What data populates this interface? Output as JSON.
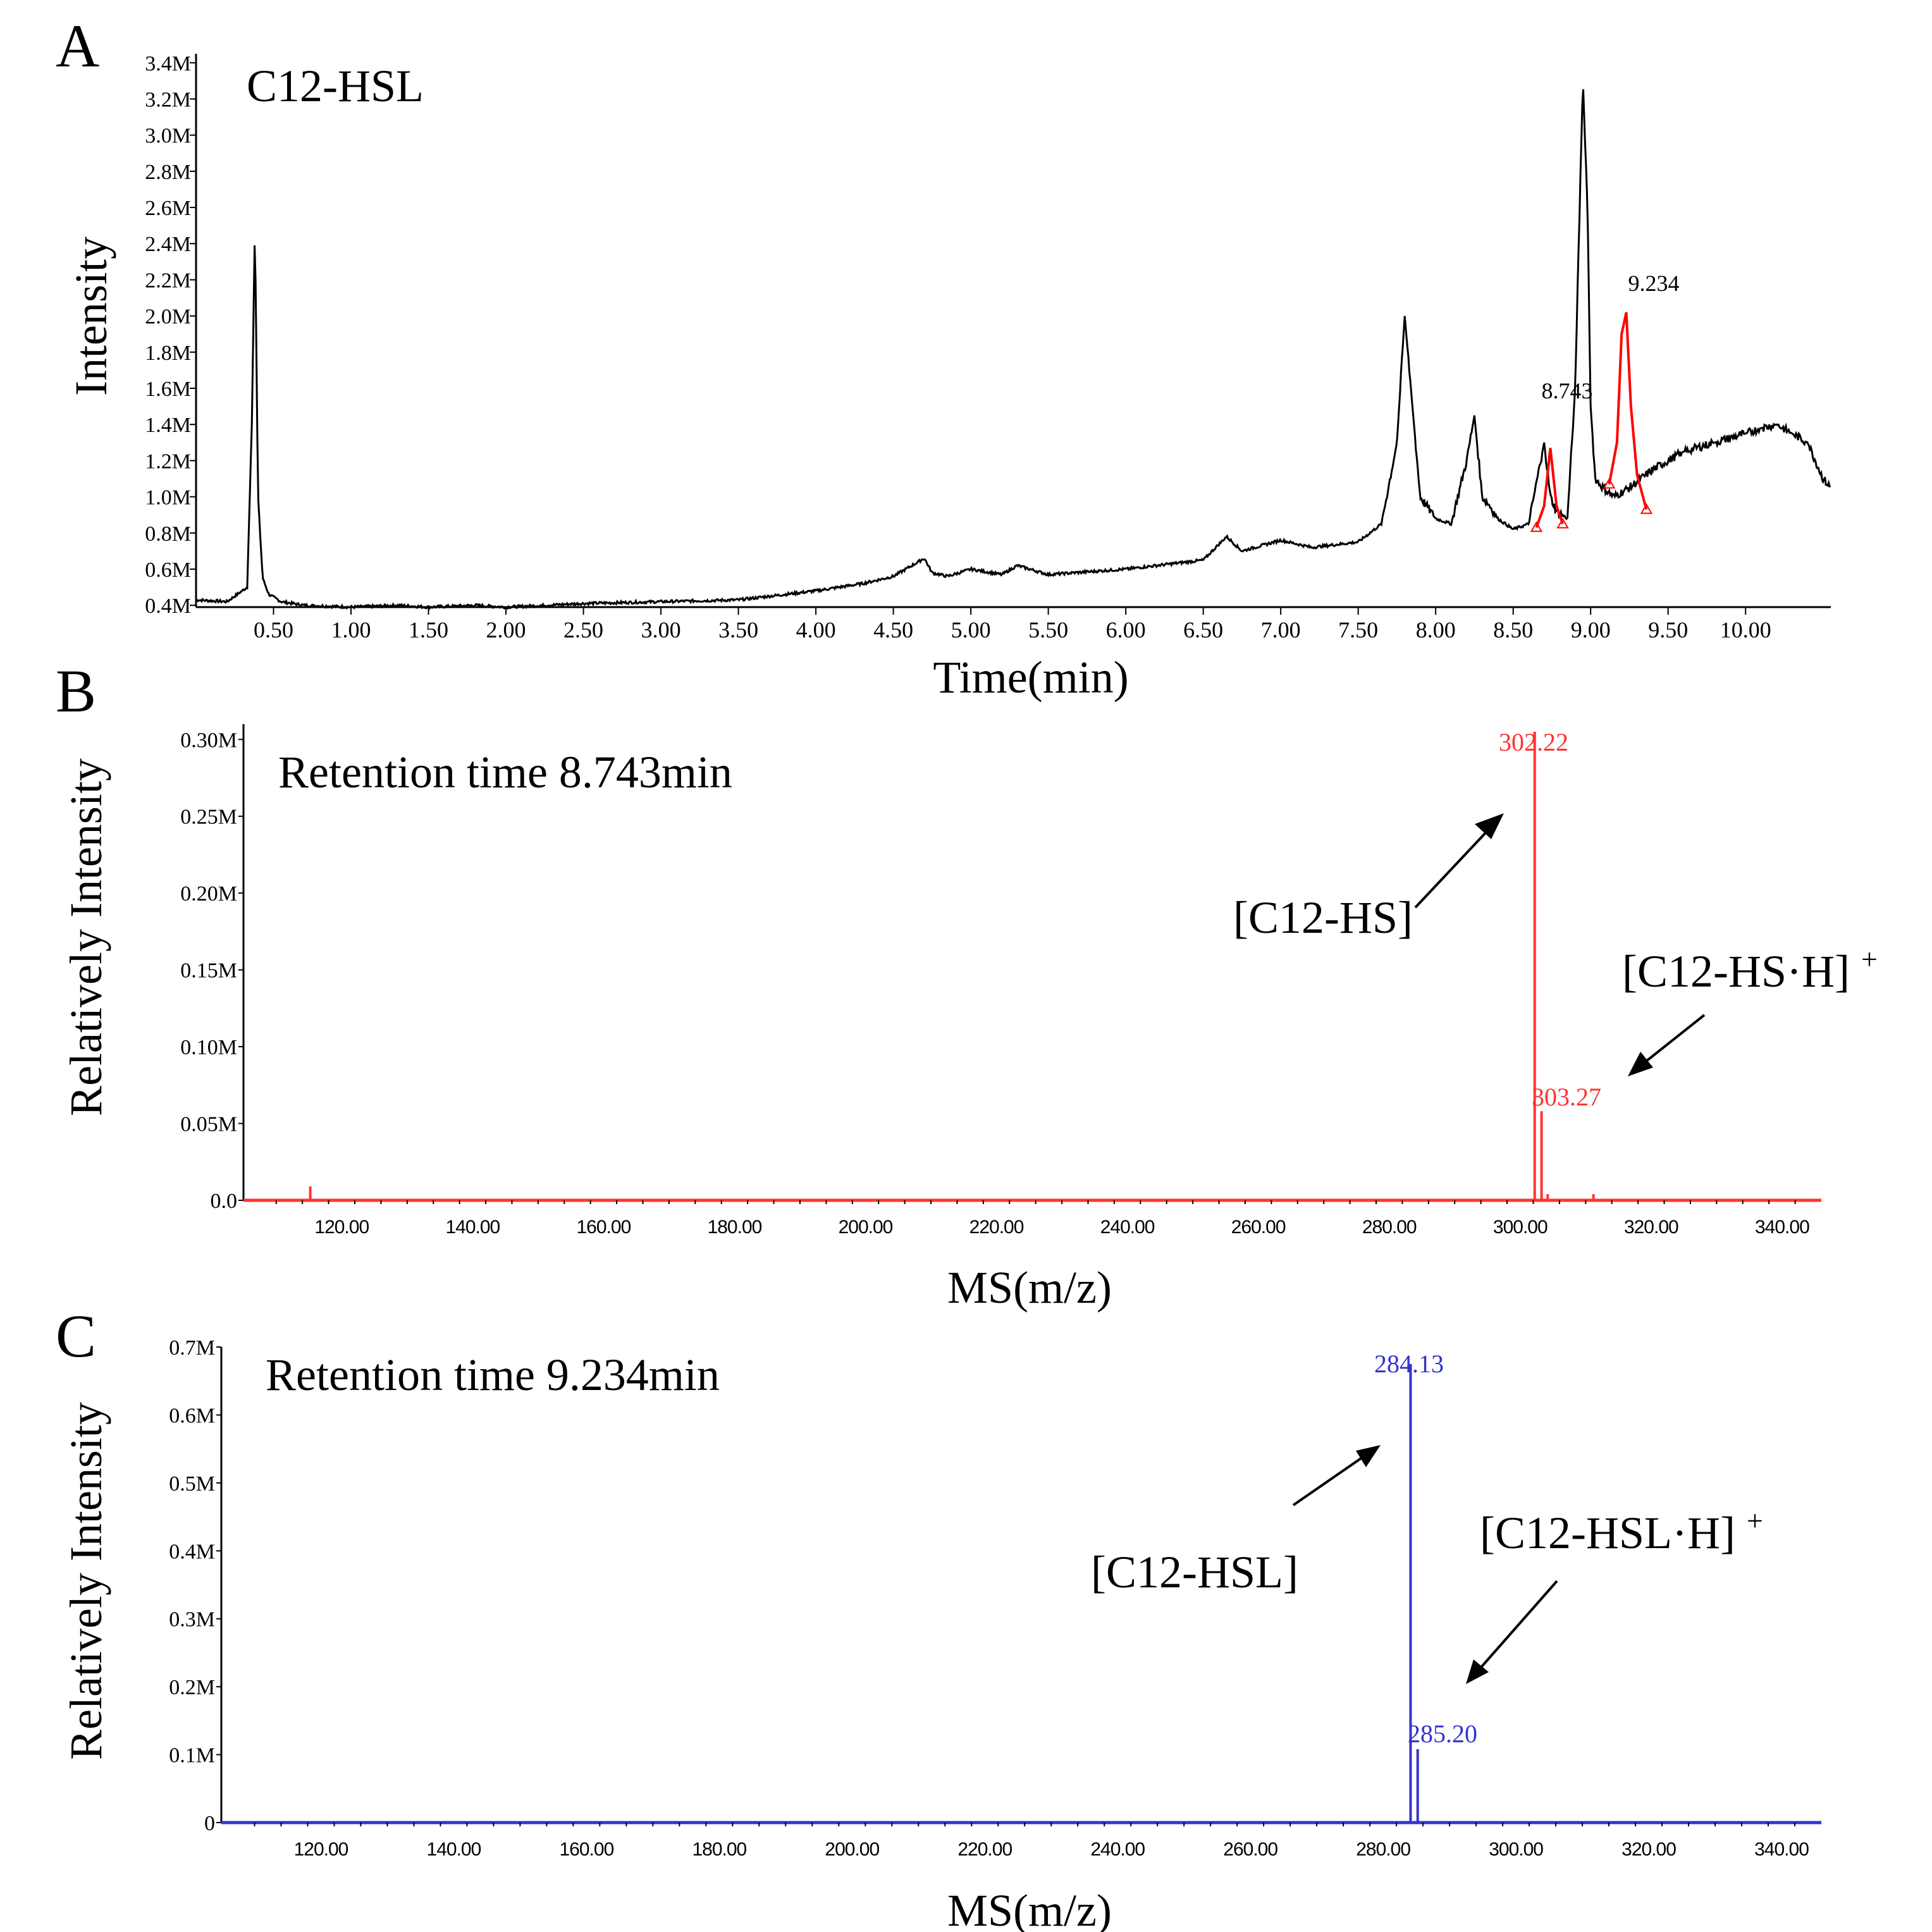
{
  "colors": {
    "axis": "#000000",
    "trace_black": "#000000",
    "trace_red": "#ff0000",
    "spectrum_red": "#ff3333",
    "spectrum_blue": "#3333cc",
    "arrow": "#000000"
  },
  "chart_data": [
    {
      "panel_letter": "A",
      "type": "line",
      "title": "C12-HSL",
      "xlabel": "Time(min)",
      "ylabel": "Intensity",
      "x_tick_labels": [
        "0.50",
        "1.00",
        "1.50",
        "2.00",
        "2.50",
        "3.00",
        "3.50",
        "4.00",
        "4.50",
        "5.00",
        "5.50",
        "6.00",
        "6.50",
        "7.00",
        "7.50",
        "8.00",
        "8.50",
        "9.00",
        "9.50",
        "10.00"
      ],
      "y_tick_labels": [
        "0.4M",
        "0.6M",
        "0.8M",
        "1.0M",
        "1.2M",
        "1.4M",
        "1.6M",
        "1.8M",
        "2.0M",
        "2.2M",
        "2.4M",
        "2.6M",
        "2.8M",
        "3.0M",
        "3.2M",
        "3.4M"
      ],
      "xlim": [
        0.0,
        10.55
      ],
      "ylim": [
        0.39,
        3.45
      ],
      "y_unit": "M",
      "series": [
        {
          "color": "black",
          "x": [
            0.0,
            0.2,
            0.33,
            0.36,
            0.38,
            0.4,
            0.43,
            0.47,
            0.55,
            0.7,
            1.0,
            1.3,
            1.5,
            1.8,
            2.0,
            2.5,
            3.0,
            3.5,
            4.0,
            4.3,
            4.5,
            4.7,
            4.75,
            4.85,
            5.0,
            5.2,
            5.3,
            5.5,
            6.0,
            6.5,
            6.65,
            6.75,
            7.0,
            7.2,
            7.5,
            7.65,
            7.75,
            7.8,
            7.85,
            7.9,
            8.0,
            8.1,
            8.2,
            8.25,
            8.3,
            8.35,
            8.4,
            8.5,
            8.6,
            8.7,
            8.74,
            8.78,
            8.85,
            8.9,
            8.95,
            8.98,
            9.0,
            9.03,
            9.08,
            9.15,
            9.25,
            9.4,
            9.6,
            9.8,
            10.0,
            10.1,
            10.2,
            10.3,
            10.4,
            10.5,
            10.55
          ],
          "y": [
            0.43,
            0.42,
            0.5,
            1.4,
            2.5,
            1.0,
            0.55,
            0.46,
            0.42,
            0.4,
            0.39,
            0.4,
            0.39,
            0.4,
            0.39,
            0.41,
            0.42,
            0.43,
            0.48,
            0.52,
            0.56,
            0.66,
            0.58,
            0.56,
            0.6,
            0.57,
            0.62,
            0.57,
            0.6,
            0.65,
            0.78,
            0.7,
            0.76,
            0.72,
            0.75,
            0.85,
            1.3,
            2.0,
            1.5,
            1.0,
            0.88,
            0.85,
            1.2,
            1.45,
            1.0,
            0.95,
            0.88,
            0.82,
            0.85,
            1.3,
            1.0,
            0.92,
            0.88,
            1.6,
            3.3,
            2.6,
            1.5,
            1.1,
            1.05,
            1.0,
            1.05,
            1.15,
            1.25,
            1.3,
            1.35,
            1.38,
            1.4,
            1.35,
            1.3,
            1.1,
            1.05
          ]
        },
        {
          "color": "red",
          "x": [
            8.65,
            8.7,
            8.74,
            8.78,
            8.82,
            9.12,
            9.17,
            9.2,
            9.23,
            9.26,
            9.3,
            9.36
          ],
          "y": [
            0.83,
            0.95,
            1.27,
            0.95,
            0.85,
            1.07,
            1.3,
            1.9,
            2.02,
            1.5,
            1.12,
            0.93
          ]
        }
      ],
      "annotations": [
        {
          "text": "8.743",
          "x": 8.743,
          "y": 1.27
        },
        {
          "text": "9.234",
          "x": 9.234,
          "y": 2.02
        }
      ]
    },
    {
      "panel_letter": "B",
      "type": "bar",
      "title": "Retention time 8.743min",
      "xlabel": "MS(m/z)",
      "ylabel": "Relatively Intensity",
      "x_tick_labels": [
        "120.00",
        "140.00",
        "160.00",
        "180.00",
        "200.00",
        "220.00",
        "240.00",
        "260.00",
        "280.00",
        "300.00",
        "320.00",
        "340.00"
      ],
      "y_tick_labels": [
        "0.0",
        "0.05M",
        "0.10M",
        "0.15M",
        "0.20M",
        "0.25M",
        "0.30M"
      ],
      "xlim": [
        105,
        346
      ],
      "ylim": [
        0,
        0.31
      ],
      "y_unit": "M",
      "color": "red",
      "x": [
        115.2,
        302.22,
        303.27,
        304.2,
        311.2
      ],
      "y": [
        0.009,
        0.305,
        0.058,
        0.004,
        0.004
      ],
      "peak_labels": [
        {
          "text": "302.22",
          "x": 302.22
        },
        {
          "text": "303.27",
          "x": 303.27
        }
      ],
      "annotations": [
        {
          "text": "[C12-HS]"
        },
        {
          "text": "[C12-HS·H]",
          "sup": "+"
        }
      ]
    },
    {
      "panel_letter": "C",
      "type": "bar",
      "title": "Retention time 9.234min",
      "xlabel": "MS(m/z)",
      "ylabel": "Relatively Intensity",
      "x_tick_labels": [
        "120.00",
        "140.00",
        "160.00",
        "180.00",
        "200.00",
        "220.00",
        "240.00",
        "260.00",
        "280.00",
        "300.00",
        "320.00",
        "340.00"
      ],
      "y_tick_labels": [
        "0",
        "0.1M",
        "0.2M",
        "0.3M",
        "0.4M",
        "0.5M",
        "0.6M",
        "0.7M"
      ],
      "xlim": [
        105,
        346
      ],
      "ylim": [
        0,
        0.7
      ],
      "y_unit": "M",
      "color": "blue",
      "x": [
        284.13,
        285.2
      ],
      "y": [
        0.675,
        0.108
      ],
      "peak_labels": [
        {
          "text": "284.13",
          "x": 284.13
        },
        {
          "text": "285.20",
          "x": 285.2
        }
      ],
      "annotations": [
        {
          "text": "[C12-HSL]"
        },
        {
          "text": "[C12-HSL·H]",
          "sup": "+"
        }
      ]
    }
  ]
}
